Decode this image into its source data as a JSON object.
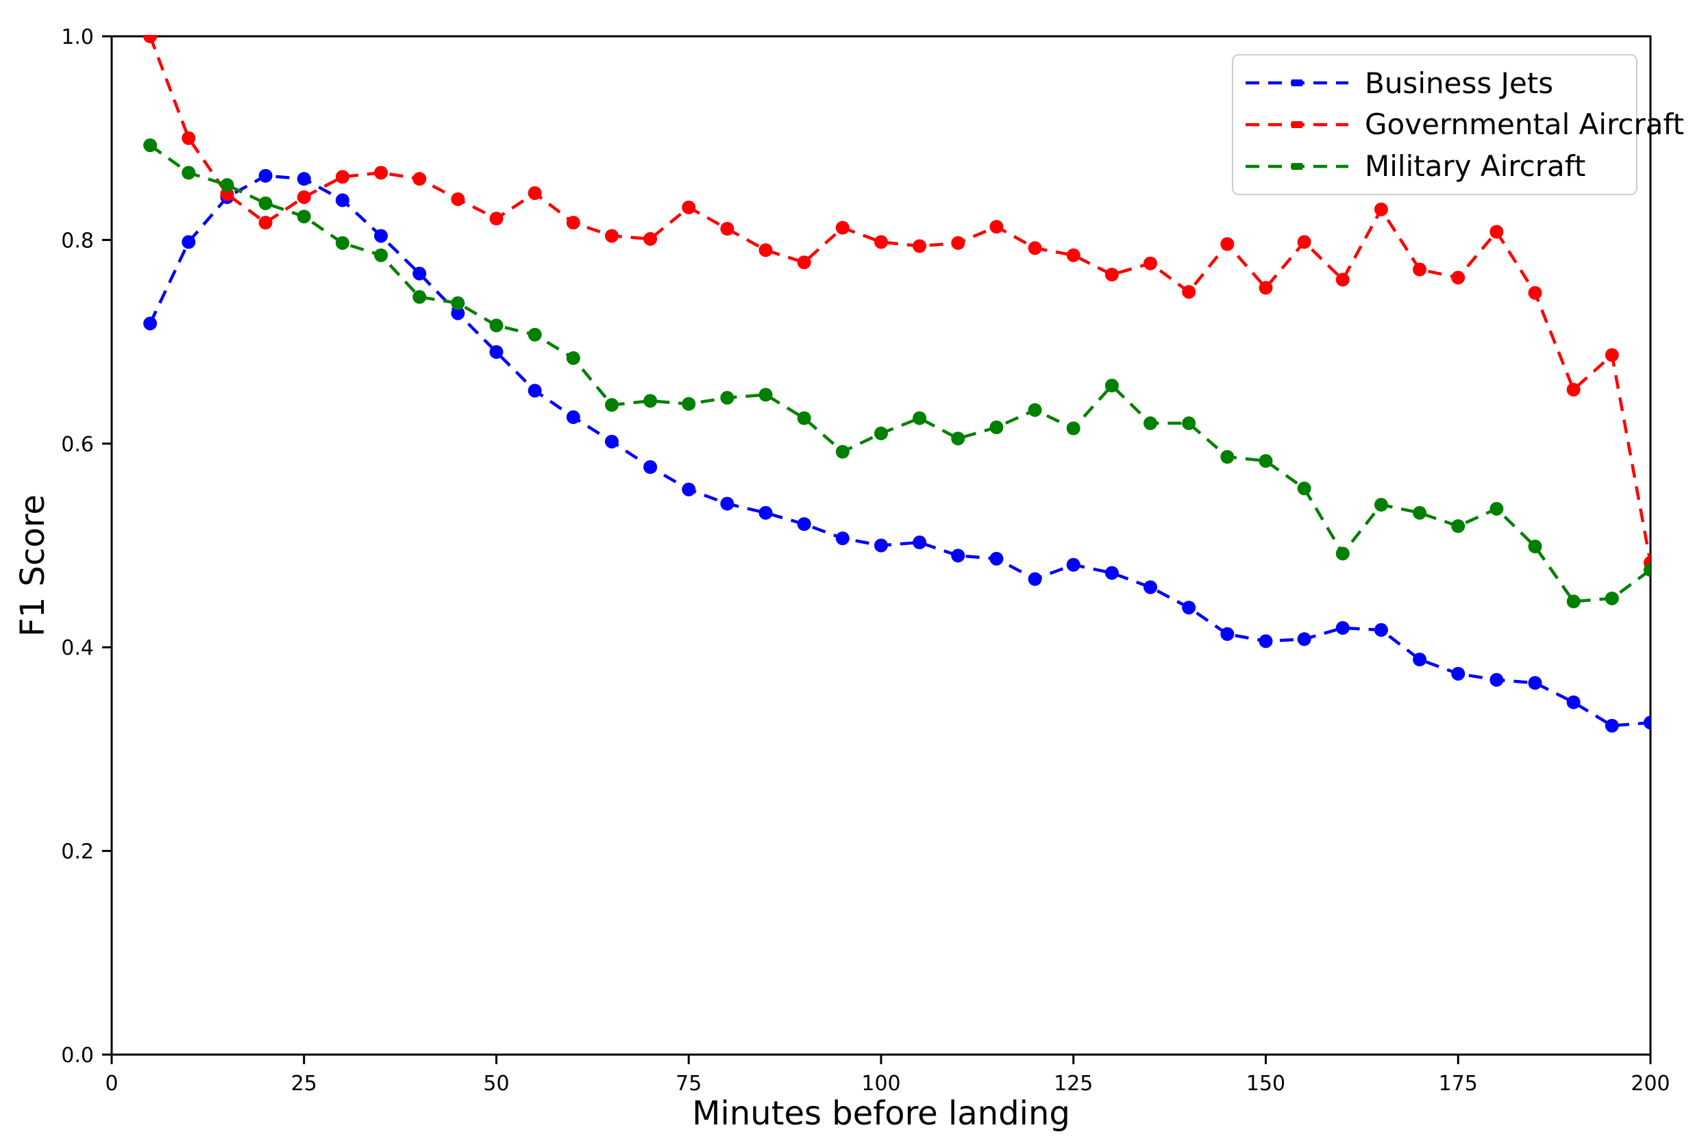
{
  "figure": {
    "background": "#ffffff"
  },
  "chart_data": {
    "type": "line",
    "title": "",
    "xlabel": "Minutes before landing",
    "ylabel": "F1 Score",
    "xlim": [
      0,
      200
    ],
    "ylim": [
      0.0,
      1.0
    ],
    "x_ticks": [
      "0",
      "25",
      "50",
      "75",
      "100",
      "125",
      "150",
      "175",
      "200"
    ],
    "y_ticks": [
      "0.0",
      "0.2",
      "0.4",
      "0.6",
      "0.8",
      "1.0"
    ],
    "grid": false,
    "legend_position": "upper right",
    "line_style": "dashed",
    "marker": "circle",
    "x": [
      5,
      10,
      15,
      20,
      25,
      30,
      35,
      40,
      45,
      50,
      55,
      60,
      65,
      70,
      75,
      80,
      85,
      90,
      95,
      100,
      105,
      110,
      115,
      120,
      125,
      130,
      135,
      140,
      145,
      150,
      155,
      160,
      165,
      170,
      175,
      180,
      185,
      190,
      195,
      200
    ],
    "series": [
      {
        "name": "Business Jets",
        "color": "#0000ff",
        "values": [
          0.718,
          0.798,
          0.842,
          0.863,
          0.86,
          0.839,
          0.804,
          0.767,
          0.728,
          0.69,
          0.652,
          0.626,
          0.602,
          0.577,
          0.555,
          0.541,
          0.532,
          0.521,
          0.507,
          0.5,
          0.503,
          0.49,
          0.487,
          0.467,
          0.481,
          0.473,
          0.459,
          0.439,
          0.413,
          0.406,
          0.408,
          0.419,
          0.417,
          0.388,
          0.374,
          0.368,
          0.365,
          0.346,
          0.323,
          0.326
        ]
      },
      {
        "name": "Governmental Aircraft",
        "color": "#ff0000",
        "values": [
          1.0,
          0.9,
          0.845,
          0.817,
          0.842,
          0.862,
          0.866,
          0.86,
          0.84,
          0.821,
          0.846,
          0.817,
          0.804,
          0.801,
          0.832,
          0.811,
          0.79,
          0.778,
          0.812,
          0.798,
          0.794,
          0.797,
          0.813,
          0.792,
          0.785,
          0.766,
          0.777,
          0.749,
          0.796,
          0.753,
          0.798,
          0.761,
          0.83,
          0.771,
          0.763,
          0.808,
          0.748,
          0.653,
          0.687,
          0.483
        ]
      },
      {
        "name": "Military Aircraft",
        "color": "#008000",
        "values": [
          0.893,
          0.866,
          0.854,
          0.836,
          0.823,
          0.797,
          0.785,
          0.744,
          0.738,
          0.716,
          0.707,
          0.684,
          0.638,
          0.642,
          0.639,
          0.645,
          0.648,
          0.625,
          0.592,
          0.61,
          0.625,
          0.605,
          0.616,
          0.633,
          0.615,
          0.657,
          0.62,
          0.62,
          0.587,
          0.583,
          0.556,
          0.492,
          0.54,
          0.532,
          0.519,
          0.536,
          0.499,
          0.445,
          0.448,
          0.476
        ]
      }
    ]
  }
}
